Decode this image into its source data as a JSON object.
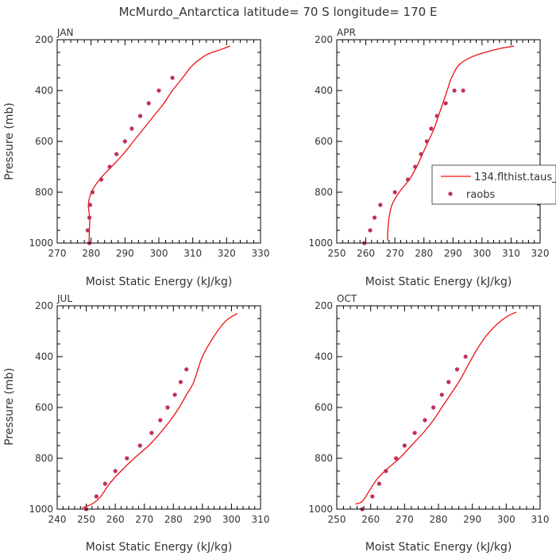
{
  "figure": {
    "title": "McMurdo_Antarctica  latitude= 70 S longitude= 170 E"
  },
  "legend": {
    "model_label": "134.flthist.taus_",
    "obs_label": "raobs",
    "placement": "right, inside APR panel"
  },
  "colors": {
    "model": "#ee1111",
    "obs": "#c0305a",
    "frame": "#000000",
    "text": "#333333"
  },
  "chart_data": [
    {
      "type": "line",
      "panel_label": "JAN",
      "xlabel": "Moist Static Energy (kJ/kg)",
      "ylabel": "Pressure (mb)",
      "xlim": [
        270,
        330
      ],
      "ylim": [
        1000,
        200
      ],
      "xticks": [
        270,
        280,
        290,
        300,
        310,
        320,
        330
      ],
      "yticks": [
        200,
        400,
        600,
        800,
        1000
      ],
      "model": {
        "x": [
          279.4,
          279.5,
          279.6,
          279.2,
          280.1,
          282.5,
          286.0,
          289.5,
          292.5,
          295.5,
          298.5,
          301.5,
          304.0,
          307.0,
          310.0,
          314.0,
          318.0,
          321.0
        ],
        "y": [
          1000,
          950,
          900,
          850,
          800,
          750,
          700,
          650,
          600,
          550,
          500,
          450,
          400,
          350,
          300,
          260,
          240,
          225
        ]
      },
      "obs": {
        "x": [
          279.5,
          279.0,
          279.5,
          279.7,
          280.4,
          283.0,
          285.5,
          287.5,
          290.0,
          292.0,
          294.5,
          297.0,
          300.0,
          304.0
        ],
        "y": [
          1000,
          950,
          900,
          850,
          800,
          750,
          700,
          650,
          600,
          550,
          500,
          450,
          400,
          350
        ]
      }
    },
    {
      "type": "line",
      "panel_label": "APR",
      "xlabel": "Moist Static Energy (kJ/kg)",
      "ylabel": "",
      "xlim": [
        250,
        320
      ],
      "ylim": [
        1000,
        200
      ],
      "xticks": [
        250,
        260,
        270,
        280,
        290,
        300,
        310,
        320
      ],
      "yticks": [
        200,
        400,
        600,
        800,
        1000
      ],
      "model": {
        "x": [
          267.5,
          267.6,
          268.0,
          269.0,
          271.5,
          275.0,
          277.5,
          279.5,
          281.5,
          283.5,
          285.0,
          286.5,
          288.0,
          289.5,
          292.0,
          296.0,
          301.0,
          306.0,
          311.0
        ],
        "y": [
          990,
          950,
          900,
          850,
          800,
          750,
          700,
          650,
          600,
          550,
          500,
          450,
          400,
          350,
          300,
          270,
          250,
          235,
          225
        ]
      },
      "obs": {
        "x": [
          259.5,
          261.5,
          263.0,
          265.0,
          270.0,
          274.5,
          277.0,
          279.0,
          281.0,
          282.5,
          284.5,
          287.5,
          290.5,
          293.5
        ],
        "y": [
          1000,
          950,
          900,
          850,
          800,
          750,
          700,
          650,
          600,
          550,
          500,
          450,
          400,
          400
        ]
      }
    },
    {
      "type": "line",
      "panel_label": "JUL",
      "xlabel": "Moist Static Energy (kJ/kg)",
      "ylabel": "Pressure (mb)",
      "xlim": [
        240,
        310
      ],
      "ylim": [
        1000,
        200
      ],
      "xticks": [
        240,
        250,
        260,
        270,
        280,
        290,
        300,
        310
      ],
      "yticks": [
        200,
        400,
        600,
        800,
        1000
      ],
      "model": {
        "x": [
          248.5,
          252.0,
          255.0,
          258.0,
          262.0,
          266.5,
          271.5,
          275.5,
          279.0,
          282.0,
          284.5,
          287.0,
          290.0,
          294.0,
          298.0,
          302.0
        ],
        "y": [
          995,
          980,
          950,
          900,
          850,
          800,
          750,
          700,
          650,
          600,
          550,
          500,
          400,
          320,
          260,
          230
        ]
      },
      "obs": {
        "x": [
          250.0,
          253.5,
          256.5,
          260.0,
          264.0,
          268.5,
          272.5,
          275.5,
          278.0,
          280.5,
          282.5,
          284.5
        ],
        "y": [
          1000,
          950,
          900,
          850,
          800,
          750,
          700,
          650,
          600,
          550,
          500,
          450
        ]
      }
    },
    {
      "type": "line",
      "panel_label": "OCT",
      "xlabel": "Moist Static Energy (kJ/kg)",
      "ylabel": "",
      "xlim": [
        250,
        310
      ],
      "ylim": [
        1000,
        200
      ],
      "xticks": [
        250,
        260,
        270,
        280,
        290,
        300,
        310
      ],
      "yticks": [
        200,
        400,
        600,
        800,
        1000
      ],
      "model": {
        "x": [
          255.5,
          257.5,
          259.5,
          262.0,
          265.0,
          268.5,
          272.0,
          275.5,
          278.5,
          281.0,
          283.5,
          286.0,
          288.5,
          291.0,
          294.0,
          297.5,
          300.5,
          303.0
        ],
        "y": [
          980,
          970,
          930,
          880,
          840,
          800,
          750,
          700,
          650,
          600,
          550,
          500,
          440,
          380,
          320,
          270,
          240,
          225
        ]
      },
      "obs": {
        "x": [
          257.5,
          260.5,
          262.5,
          264.5,
          267.5,
          270.0,
          273.0,
          276.0,
          278.5,
          281.0,
          283.0,
          285.5,
          288.0
        ],
        "y": [
          1000,
          950,
          900,
          850,
          800,
          750,
          700,
          650,
          600,
          550,
          500,
          450,
          400
        ]
      }
    }
  ]
}
